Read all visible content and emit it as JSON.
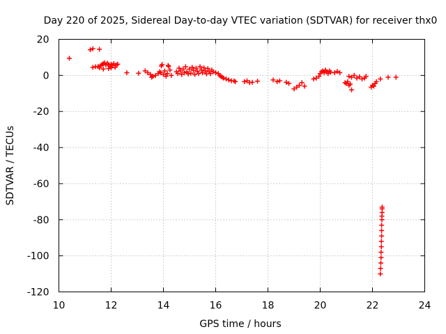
{
  "chart_data": {
    "type": "scatter",
    "title": "Day 220 of 2025, Sidereal Day-to-day VTEC variation (SDTVAR) for receiver thx0",
    "xlabel": "GPS time / hours",
    "ylabel": "SDTVAR / TECUs",
    "xlim": [
      10,
      24
    ],
    "ylim": [
      -120,
      20
    ],
    "xticks": [
      "10",
      "12",
      "14",
      "16",
      "18",
      "20",
      "22",
      "24"
    ],
    "yticks": [
      "20",
      "0",
      "-20",
      "-40",
      "-60",
      "-80",
      "-100",
      "-120"
    ],
    "grid": true,
    "marker": "+",
    "color": "#ff0000",
    "series": [
      {
        "name": "thx0",
        "points": [
          [
            10.4,
            9.5
          ],
          [
            11.2,
            14.2
          ],
          [
            11.3,
            14.8
          ],
          [
            11.55,
            14.5
          ],
          [
            11.3,
            4.5
          ],
          [
            11.4,
            4.8
          ],
          [
            11.5,
            5.0
          ],
          [
            11.55,
            4.2
          ],
          [
            11.6,
            5.5
          ],
          [
            11.65,
            6.0
          ],
          [
            11.7,
            6.5
          ],
          [
            11.75,
            7.0
          ],
          [
            11.8,
            5.8
          ],
          [
            11.85,
            6.8
          ],
          [
            11.9,
            6.0
          ],
          [
            11.95,
            5.0
          ],
          [
            12.0,
            6.2
          ],
          [
            12.05,
            5.5
          ],
          [
            12.1,
            6.5
          ],
          [
            12.15,
            4.5
          ],
          [
            12.2,
            5.8
          ],
          [
            12.25,
            6.2
          ],
          [
            11.7,
            3.5
          ],
          [
            11.9,
            3.8
          ],
          [
            12.0,
            4.2
          ],
          [
            12.6,
            1.5
          ],
          [
            13.05,
            1.2
          ],
          [
            13.3,
            2.5
          ],
          [
            13.4,
            1.5
          ],
          [
            13.5,
            0.5
          ],
          [
            13.55,
            -1.0
          ],
          [
            13.6,
            -0.5
          ],
          [
            13.7,
            0.0
          ],
          [
            13.8,
            1.0
          ],
          [
            13.85,
            2.0
          ],
          [
            13.9,
            1.5
          ],
          [
            13.95,
            6.0
          ],
          [
            14.0,
            0.5
          ],
          [
            14.05,
            2.5
          ],
          [
            14.1,
            -0.5
          ],
          [
            14.15,
            1.0
          ],
          [
            14.2,
            5.0
          ],
          [
            14.25,
            3.0
          ],
          [
            14.3,
            0.0
          ],
          [
            13.92,
            5.2
          ],
          [
            14.18,
            5.5
          ],
          [
            14.5,
            2.0
          ],
          [
            14.55,
            1.0
          ],
          [
            14.6,
            4.0
          ],
          [
            14.65,
            2.5
          ],
          [
            14.7,
            0.5
          ],
          [
            14.75,
            3.5
          ],
          [
            14.8,
            1.5
          ],
          [
            14.85,
            4.8
          ],
          [
            14.9,
            2.0
          ],
          [
            14.95,
            0.8
          ],
          [
            15.0,
            3.5
          ],
          [
            15.05,
            1.2
          ],
          [
            15.1,
            4.5
          ],
          [
            15.15,
            2.8
          ],
          [
            15.2,
            0.5
          ],
          [
            15.25,
            4.0
          ],
          [
            15.3,
            2.2
          ],
          [
            15.35,
            1.0
          ],
          [
            15.4,
            4.8
          ],
          [
            15.45,
            3.0
          ],
          [
            15.5,
            1.5
          ],
          [
            15.55,
            4.2
          ],
          [
            15.6,
            2.5
          ],
          [
            15.65,
            0.8
          ],
          [
            15.7,
            3.8
          ],
          [
            15.75,
            2.0
          ],
          [
            15.8,
            1.0
          ],
          [
            15.85,
            3.0
          ],
          [
            15.9,
            2.0
          ],
          [
            16.0,
            1.5
          ],
          [
            16.1,
            1.0
          ],
          [
            16.15,
            0.0
          ],
          [
            16.2,
            -0.5
          ],
          [
            16.25,
            -1.0
          ],
          [
            16.3,
            -1.5
          ],
          [
            16.4,
            -2.0
          ],
          [
            16.5,
            -2.5
          ],
          [
            16.6,
            -3.0
          ],
          [
            16.7,
            -3.0
          ],
          [
            16.75,
            -3.5
          ],
          [
            17.1,
            -3.5
          ],
          [
            17.2,
            -3.0
          ],
          [
            17.3,
            -4.0
          ],
          [
            17.4,
            -3.8
          ],
          [
            17.6,
            -3.2
          ],
          [
            18.2,
            -2.5
          ],
          [
            18.35,
            -3.5
          ],
          [
            18.45,
            -3.0
          ],
          [
            18.7,
            -3.8
          ],
          [
            18.8,
            -4.5
          ],
          [
            19.0,
            -7.5
          ],
          [
            19.1,
            -6.5
          ],
          [
            19.2,
            -5.5
          ],
          [
            19.3,
            -4.0
          ],
          [
            19.4,
            -6.0
          ],
          [
            19.75,
            -2.0
          ],
          [
            19.85,
            -1.5
          ],
          [
            19.95,
            -0.5
          ],
          [
            20.0,
            1.0
          ],
          [
            20.05,
            2.0
          ],
          [
            20.1,
            2.5
          ],
          [
            20.15,
            1.5
          ],
          [
            20.2,
            3.0
          ],
          [
            20.25,
            2.0
          ],
          [
            20.3,
            1.0
          ],
          [
            20.35,
            2.5
          ],
          [
            20.4,
            1.8
          ],
          [
            20.55,
            1.5
          ],
          [
            20.65,
            2.2
          ],
          [
            20.75,
            1.5
          ],
          [
            20.95,
            -4.0
          ],
          [
            21.0,
            -4.5
          ],
          [
            21.05,
            -3.5
          ],
          [
            21.1,
            -5.5
          ],
          [
            21.15,
            -4.8
          ],
          [
            21.2,
            -8.0
          ],
          [
            21.1,
            -0.5
          ],
          [
            21.2,
            -1.0
          ],
          [
            21.3,
            0.0
          ],
          [
            21.4,
            -1.5
          ],
          [
            21.5,
            -0.8
          ],
          [
            21.6,
            -2.0
          ],
          [
            21.7,
            -1.5
          ],
          [
            21.75,
            -0.5
          ],
          [
            21.95,
            -6.5
          ],
          [
            22.0,
            -5.5
          ],
          [
            22.05,
            -6.0
          ],
          [
            22.1,
            -4.5
          ],
          [
            22.15,
            -3.5
          ],
          [
            22.3,
            -2.0
          ],
          [
            22.6,
            -1.0
          ],
          [
            22.9,
            -1.0
          ],
          [
            22.3,
            -110
          ],
          [
            22.31,
            -107
          ],
          [
            22.32,
            -104
          ],
          [
            22.33,
            -101
          ],
          [
            22.33,
            -98
          ],
          [
            22.34,
            -95
          ],
          [
            22.34,
            -92
          ],
          [
            22.35,
            -89
          ],
          [
            22.35,
            -86
          ],
          [
            22.35,
            -83
          ],
          [
            22.36,
            -80
          ],
          [
            22.36,
            -78
          ],
          [
            22.37,
            -76
          ],
          [
            22.37,
            -74
          ],
          [
            22.37,
            -73
          ]
        ]
      }
    ]
  }
}
